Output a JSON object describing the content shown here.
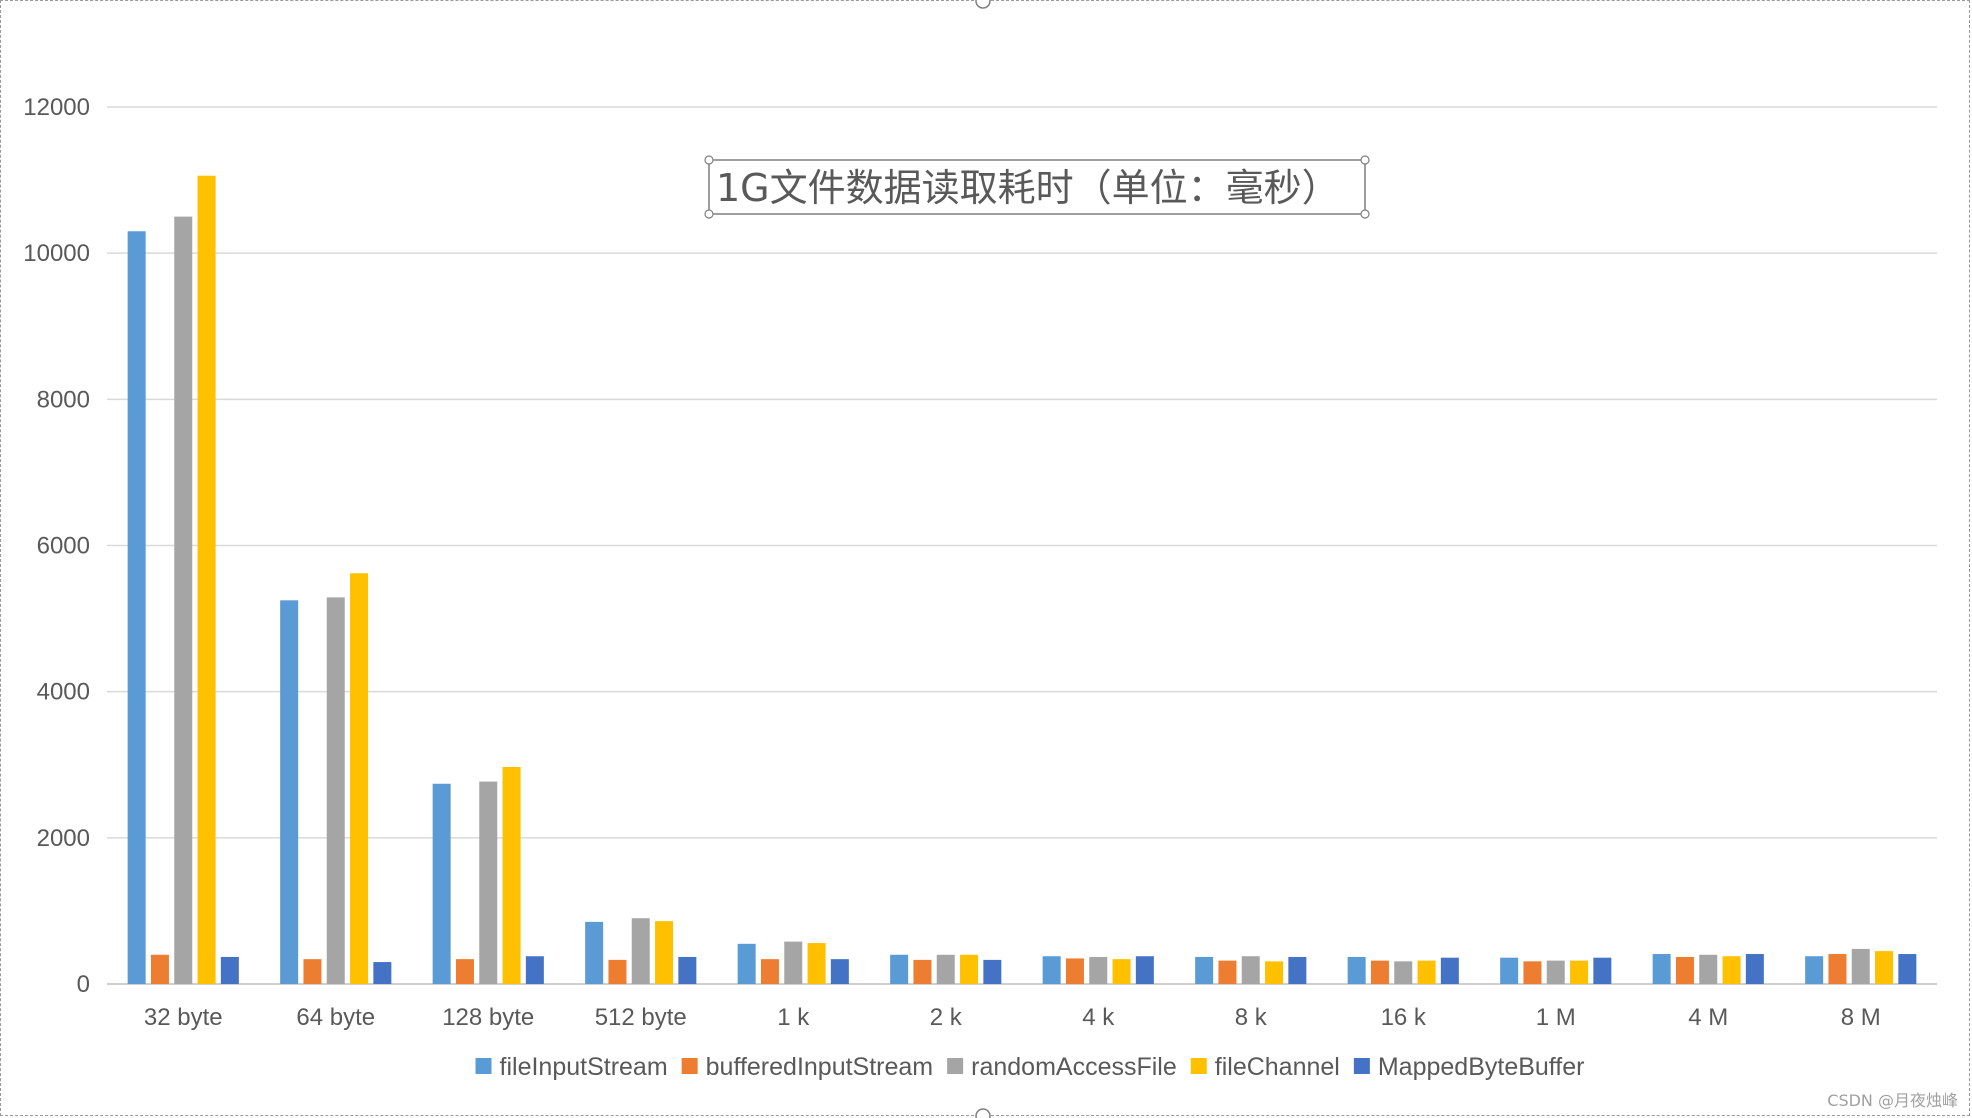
{
  "watermark": "CSDN @月夜烛峰",
  "chart_data": {
    "type": "bar",
    "title": "1G文件数据读取耗时（单位：毫秒）",
    "xlabel": "",
    "ylabel": "",
    "ylim": [
      0,
      12000
    ],
    "yticks": [
      0,
      2000,
      4000,
      6000,
      8000,
      10000,
      12000
    ],
    "grid": true,
    "legend_position": "bottom",
    "categories": [
      "32 byte",
      "64 byte",
      "128 byte",
      "512 byte",
      "1 k",
      "2 k",
      "4 k",
      "8 k",
      "16 k",
      "1 M",
      "4 M",
      "8 M"
    ],
    "series": [
      {
        "name": "fileInputStream",
        "color": "#5b9bd5",
        "values": [
          10300,
          5250,
          2740,
          850,
          550,
          400,
          380,
          370,
          370,
          360,
          410,
          380
        ]
      },
      {
        "name": "bufferedInputStream",
        "color": "#ed7d31",
        "values": [
          400,
          340,
          340,
          330,
          340,
          330,
          350,
          320,
          320,
          310,
          370,
          410
        ]
      },
      {
        "name": "randomAccessFile",
        "color": "#a5a5a5",
        "values": [
          10500,
          5290,
          2770,
          900,
          580,
          400,
          370,
          380,
          310,
          320,
          400,
          480
        ]
      },
      {
        "name": "fileChannel",
        "color": "#ffc000",
        "values": [
          11060,
          5620,
          2970,
          860,
          560,
          400,
          340,
          310,
          320,
          320,
          380,
          450
        ]
      },
      {
        "name": "MappedByteBuffer",
        "color": "#4472c4",
        "values": [
          370,
          300,
          380,
          370,
          340,
          330,
          380,
          370,
          360,
          360,
          410,
          410
        ]
      }
    ]
  }
}
